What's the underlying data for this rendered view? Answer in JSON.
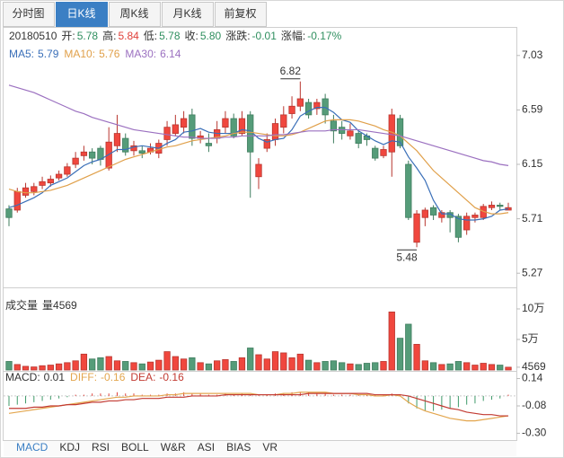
{
  "tabs": {
    "items": [
      "分时图",
      "日K线",
      "周K线",
      "月K线",
      "前复权"
    ],
    "active": 1
  },
  "header": {
    "date": "20180510",
    "fields": [
      {
        "label": "开:",
        "value": "5.78",
        "color": "#2f8f5f"
      },
      {
        "label": "高:",
        "value": "5.84",
        "color": "#e0403a"
      },
      {
        "label": "低:",
        "value": "5.78",
        "color": "#2f8f5f"
      },
      {
        "label": "收:",
        "value": "5.80",
        "color": "#2f8f5f"
      },
      {
        "label": "涨跌:",
        "value": "-0.01",
        "color": "#2f8f5f"
      },
      {
        "label": "涨幅:",
        "value": "-0.17%",
        "color": "#2f8f5f"
      }
    ]
  },
  "chart_data": [
    {
      "type": "candlestick",
      "up_color": "#f0473e",
      "down_color": "#559c79",
      "ylim": [
        5.17,
        7.13
      ],
      "yticks": [
        7.03,
        6.59,
        6.15,
        5.71,
        5.27
      ],
      "open": [
        5.79,
        5.78,
        5.9,
        5.93,
        5.98,
        6.0,
        6.04,
        6.07,
        6.15,
        6.22,
        6.25,
        6.28,
        6.12,
        6.3,
        6.36,
        6.26,
        6.26,
        6.25,
        6.24,
        6.35,
        6.4,
        6.45,
        6.55,
        6.36,
        6.32,
        6.36,
        6.45,
        6.52,
        6.4,
        6.55,
        6.05,
        6.28,
        6.35,
        6.45,
        6.56,
        6.62,
        6.65,
        6.6,
        6.68,
        6.5,
        6.45,
        6.38,
        6.4,
        6.38,
        6.28,
        6.22,
        6.25,
        6.52,
        6.15,
        5.52,
        5.72,
        5.8,
        5.72,
        5.76,
        5.73,
        5.62,
        5.72,
        5.72,
        5.8,
        5.82,
        5.78
      ],
      "close": [
        5.72,
        5.93,
        5.96,
        5.97,
        6.01,
        6.03,
        6.07,
        6.13,
        6.2,
        6.25,
        6.2,
        6.19,
        6.33,
        6.4,
        6.25,
        6.3,
        6.24,
        6.28,
        6.32,
        6.45,
        6.47,
        6.52,
        6.36,
        6.38,
        6.3,
        6.43,
        6.52,
        6.38,
        6.52,
        6.25,
        6.15,
        6.35,
        6.48,
        6.55,
        6.62,
        6.68,
        6.55,
        6.65,
        6.55,
        6.42,
        6.4,
        6.42,
        6.32,
        6.35,
        6.2,
        6.27,
        6.55,
        6.3,
        5.72,
        5.75,
        5.78,
        5.74,
        5.76,
        5.72,
        5.56,
        5.73,
        5.74,
        5.81,
        5.82,
        5.81,
        5.8
      ],
      "high": [
        5.82,
        5.96,
        6.0,
        6.0,
        6.05,
        6.06,
        6.1,
        6.16,
        6.25,
        6.3,
        6.28,
        6.3,
        6.45,
        6.55,
        6.4,
        6.34,
        6.3,
        6.32,
        6.35,
        6.5,
        6.55,
        6.58,
        6.6,
        6.42,
        6.4,
        6.5,
        6.58,
        6.56,
        6.58,
        6.58,
        6.2,
        6.4,
        6.52,
        6.62,
        6.7,
        6.82,
        6.68,
        6.68,
        6.72,
        6.55,
        6.5,
        6.48,
        6.42,
        6.4,
        6.3,
        6.3,
        6.6,
        6.55,
        6.18,
        5.78,
        5.8,
        5.82,
        5.78,
        5.78,
        5.75,
        5.76,
        5.76,
        5.83,
        5.85,
        5.84,
        5.84
      ],
      "low": [
        5.65,
        5.76,
        5.88,
        5.9,
        5.95,
        5.97,
        6.02,
        6.05,
        6.12,
        6.18,
        6.15,
        6.14,
        6.1,
        6.25,
        6.22,
        6.22,
        6.2,
        6.23,
        6.2,
        6.3,
        6.38,
        6.4,
        6.3,
        6.32,
        6.25,
        6.32,
        6.4,
        6.36,
        6.38,
        5.88,
        5.95,
        6.25,
        6.3,
        6.4,
        6.52,
        6.58,
        6.52,
        6.55,
        6.48,
        6.32,
        6.35,
        6.35,
        6.28,
        6.3,
        6.18,
        6.2,
        6.05,
        6.28,
        5.7,
        5.48,
        5.65,
        5.7,
        5.68,
        5.6,
        5.52,
        5.58,
        5.68,
        5.7,
        5.78,
        5.78,
        5.78
      ],
      "series": [
        {
          "name": "MA5:",
          "color": "#3a6fb8",
          "values": [
            5.8,
            5.82,
            5.85,
            5.88,
            5.92,
            5.98,
            6.01,
            6.04,
            6.09,
            6.14,
            6.17,
            6.19,
            6.23,
            6.27,
            6.27,
            6.29,
            6.3,
            6.29,
            6.28,
            6.32,
            6.35,
            6.41,
            6.42,
            6.44,
            6.41,
            6.4,
            6.4,
            6.4,
            6.43,
            6.42,
            6.36,
            6.33,
            6.35,
            6.36,
            6.43,
            6.54,
            6.58,
            6.61,
            6.61,
            6.57,
            6.51,
            6.49,
            6.42,
            6.38,
            6.34,
            6.31,
            6.34,
            6.33,
            6.21,
            6.12,
            6.02,
            5.86,
            5.75,
            5.75,
            5.71,
            5.7,
            5.7,
            5.71,
            5.73,
            5.78,
            5.79
          ]
        },
        {
          "name": "MA10:",
          "color": "#e0a04a",
          "values": [
            5.95,
            5.93,
            5.92,
            5.92,
            5.93,
            5.94,
            5.96,
            5.98,
            6.01,
            6.04,
            6.07,
            6.1,
            6.13,
            6.16,
            6.19,
            6.21,
            6.23,
            6.25,
            6.27,
            6.29,
            6.3,
            6.32,
            6.34,
            6.35,
            6.36,
            6.37,
            6.38,
            6.4,
            6.41,
            6.41,
            6.4,
            6.39,
            6.38,
            6.38,
            6.39,
            6.41,
            6.44,
            6.47,
            6.5,
            6.51,
            6.51,
            6.51,
            6.5,
            6.48,
            6.46,
            6.43,
            6.41,
            6.38,
            6.32,
            6.26,
            6.18,
            6.1,
            6.04,
            5.98,
            5.92,
            5.86,
            5.8,
            5.77,
            5.75,
            5.75,
            5.76
          ]
        },
        {
          "name": "MA30:",
          "color": "#9b70c0",
          "values": [
            6.79,
            6.77,
            6.75,
            6.73,
            6.7,
            6.67,
            6.64,
            6.61,
            6.58,
            6.56,
            6.53,
            6.51,
            6.49,
            6.47,
            6.45,
            6.43,
            6.42,
            6.41,
            6.4,
            6.39,
            6.38,
            6.37,
            6.37,
            6.36,
            6.36,
            6.36,
            6.37,
            6.37,
            6.38,
            6.38,
            6.38,
            6.38,
            6.39,
            6.39,
            6.4,
            6.41,
            6.42,
            6.42,
            6.42,
            6.43,
            6.43,
            6.43,
            6.43,
            6.42,
            6.41,
            6.4,
            6.39,
            6.38,
            6.36,
            6.34,
            6.32,
            6.3,
            6.28,
            6.26,
            6.24,
            6.22,
            6.2,
            6.18,
            6.17,
            6.15,
            6.14
          ]
        }
      ]
    },
    {
      "type": "bar",
      "title": "成交量",
      "label": "量",
      "ylim": [
        0,
        117600
      ],
      "yticks": [
        {
          "value": 100000,
          "label": "10万"
        },
        {
          "value": 50000,
          "label": "5万"
        },
        4569
      ],
      "values": [
        14000,
        9000,
        6000,
        5000,
        7000,
        8000,
        10000,
        12000,
        15000,
        26000,
        18000,
        20000,
        22000,
        15000,
        14000,
        12000,
        10000,
        13000,
        16000,
        30000,
        22000,
        18000,
        20000,
        12000,
        10000,
        15000,
        17000,
        14000,
        20000,
        36000,
        25000,
        18000,
        30000,
        28000,
        20000,
        26000,
        16000,
        12000,
        14000,
        15000,
        12000,
        10000,
        9000,
        11000,
        12000,
        14000,
        95000,
        52000,
        75000,
        42000,
        15000,
        12000,
        9000,
        10000,
        14000,
        12000,
        8000,
        11000,
        9000,
        8000,
        4569
      ]
    },
    {
      "type": "macd",
      "ylim": [
        -0.34,
        0.18
      ],
      "yticks": [
        0.14,
        -0.08,
        {
          "value": -0.3,
          "label": "-0.30"
        }
      ],
      "series": [
        {
          "name": "MACD:",
          "color": "#333333",
          "up_color": "#e0403a",
          "down_color": "#3f9a6a",
          "values": [
            -0.08,
            -0.07,
            -0.06,
            -0.05,
            -0.04,
            -0.03,
            -0.02,
            -0.01,
            0.01,
            0.01,
            0.02,
            0.02,
            0.02,
            0.03,
            0.02,
            0.02,
            0.01,
            0.01,
            0.01,
            0.02,
            0.02,
            0.03,
            0.02,
            0.02,
            0.01,
            0.01,
            0.02,
            0.01,
            0.02,
            0.01,
            0.01,
            0.01,
            0.02,
            0.02,
            0.03,
            0.03,
            0.03,
            0.02,
            0.02,
            0.01,
            0.01,
            0.01,
            0.01,
            0.01,
            0.01,
            0.01,
            0.02,
            0.01,
            -0.06,
            -0.1,
            -0.12,
            -0.12,
            -0.11,
            -0.1,
            -0.09,
            -0.07,
            -0.06,
            -0.04,
            -0.03,
            -0.02,
            0.01
          ]
        },
        {
          "name": "DIFF:",
          "color": "#e3a64e",
          "values": [
            -0.14,
            -0.13,
            -0.12,
            -0.11,
            -0.1,
            -0.09,
            -0.08,
            -0.07,
            -0.06,
            -0.05,
            -0.04,
            -0.03,
            -0.02,
            -0.01,
            -0.01,
            0.0,
            0.0,
            0.0,
            0.0,
            0.01,
            0.01,
            0.02,
            0.02,
            0.02,
            0.02,
            0.02,
            0.02,
            0.02,
            0.02,
            0.02,
            0.01,
            0.01,
            0.01,
            0.02,
            0.02,
            0.03,
            0.03,
            0.03,
            0.03,
            0.02,
            0.02,
            0.02,
            0.01,
            0.01,
            0.0,
            0.0,
            0.01,
            0.0,
            -0.05,
            -0.09,
            -0.12,
            -0.14,
            -0.16,
            -0.18,
            -0.19,
            -0.2,
            -0.2,
            -0.19,
            -0.18,
            -0.17,
            -0.16
          ]
        },
        {
          "name": "DEA:",
          "color": "#c23a32",
          "values": [
            -0.1,
            -0.1,
            -0.1,
            -0.09,
            -0.09,
            -0.08,
            -0.08,
            -0.07,
            -0.07,
            -0.06,
            -0.05,
            -0.05,
            -0.04,
            -0.04,
            -0.03,
            -0.03,
            -0.02,
            -0.02,
            -0.02,
            -0.01,
            -0.01,
            -0.01,
            0.0,
            0.0,
            0.0,
            0.0,
            0.01,
            0.01,
            0.01,
            0.01,
            0.01,
            0.01,
            0.01,
            0.01,
            0.01,
            0.01,
            0.02,
            0.02,
            0.02,
            0.02,
            0.02,
            0.02,
            0.02,
            0.02,
            0.01,
            0.01,
            0.01,
            0.01,
            0.0,
            -0.02,
            -0.04,
            -0.06,
            -0.08,
            -0.1,
            -0.11,
            -0.13,
            -0.14,
            -0.15,
            -0.15,
            -0.16,
            -0.16
          ]
        }
      ]
    }
  ],
  "indicators": {
    "items": [
      "MACD",
      "KDJ",
      "RSI",
      "BOLL",
      "W&R",
      "ASI",
      "BIAS",
      "VR"
    ],
    "active": 0
  }
}
